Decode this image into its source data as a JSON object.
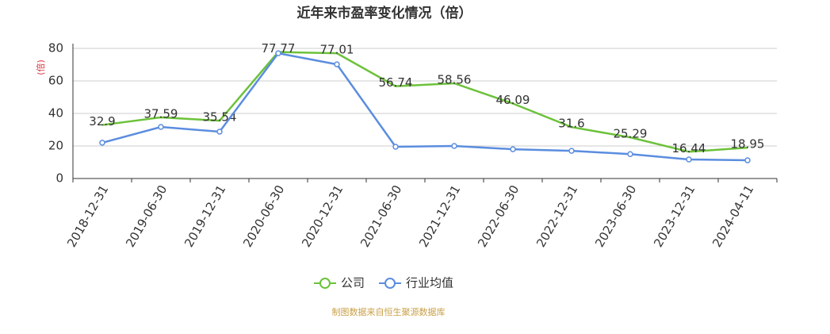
{
  "chart_data": {
    "type": "line",
    "title": "近年来市盈率变化情况（倍）",
    "y_label": "(倍)",
    "source": "制图数据来自恒生聚源数据库",
    "categories": [
      "2018-12-31",
      "2019-06-30",
      "2019-12-31",
      "2020-06-30",
      "2020-12-31",
      "2021-06-30",
      "2021-12-31",
      "2022-06-30",
      "2022-12-31",
      "2023-06-30",
      "2023-12-31",
      "2024-04-11"
    ],
    "series": [
      {
        "name": "公司",
        "color": "#6cc23a",
        "markers": false,
        "labels": true,
        "values": [
          32.9,
          37.59,
          35.54,
          77.77,
          77.01,
          56.74,
          58.56,
          46.09,
          31.6,
          25.29,
          16.44,
          18.95
        ]
      },
      {
        "name": "行业均值",
        "color": "#5b8ddf",
        "markers": true,
        "labels": false,
        "values": [
          22,
          31.7,
          28.8,
          77,
          70.2,
          19.5,
          20,
          18,
          17,
          15,
          11.7,
          11.2
        ]
      }
    ],
    "ylim": [
      0,
      80
    ],
    "yticks": [
      0,
      20,
      40,
      60,
      80
    ],
    "grid": true
  }
}
